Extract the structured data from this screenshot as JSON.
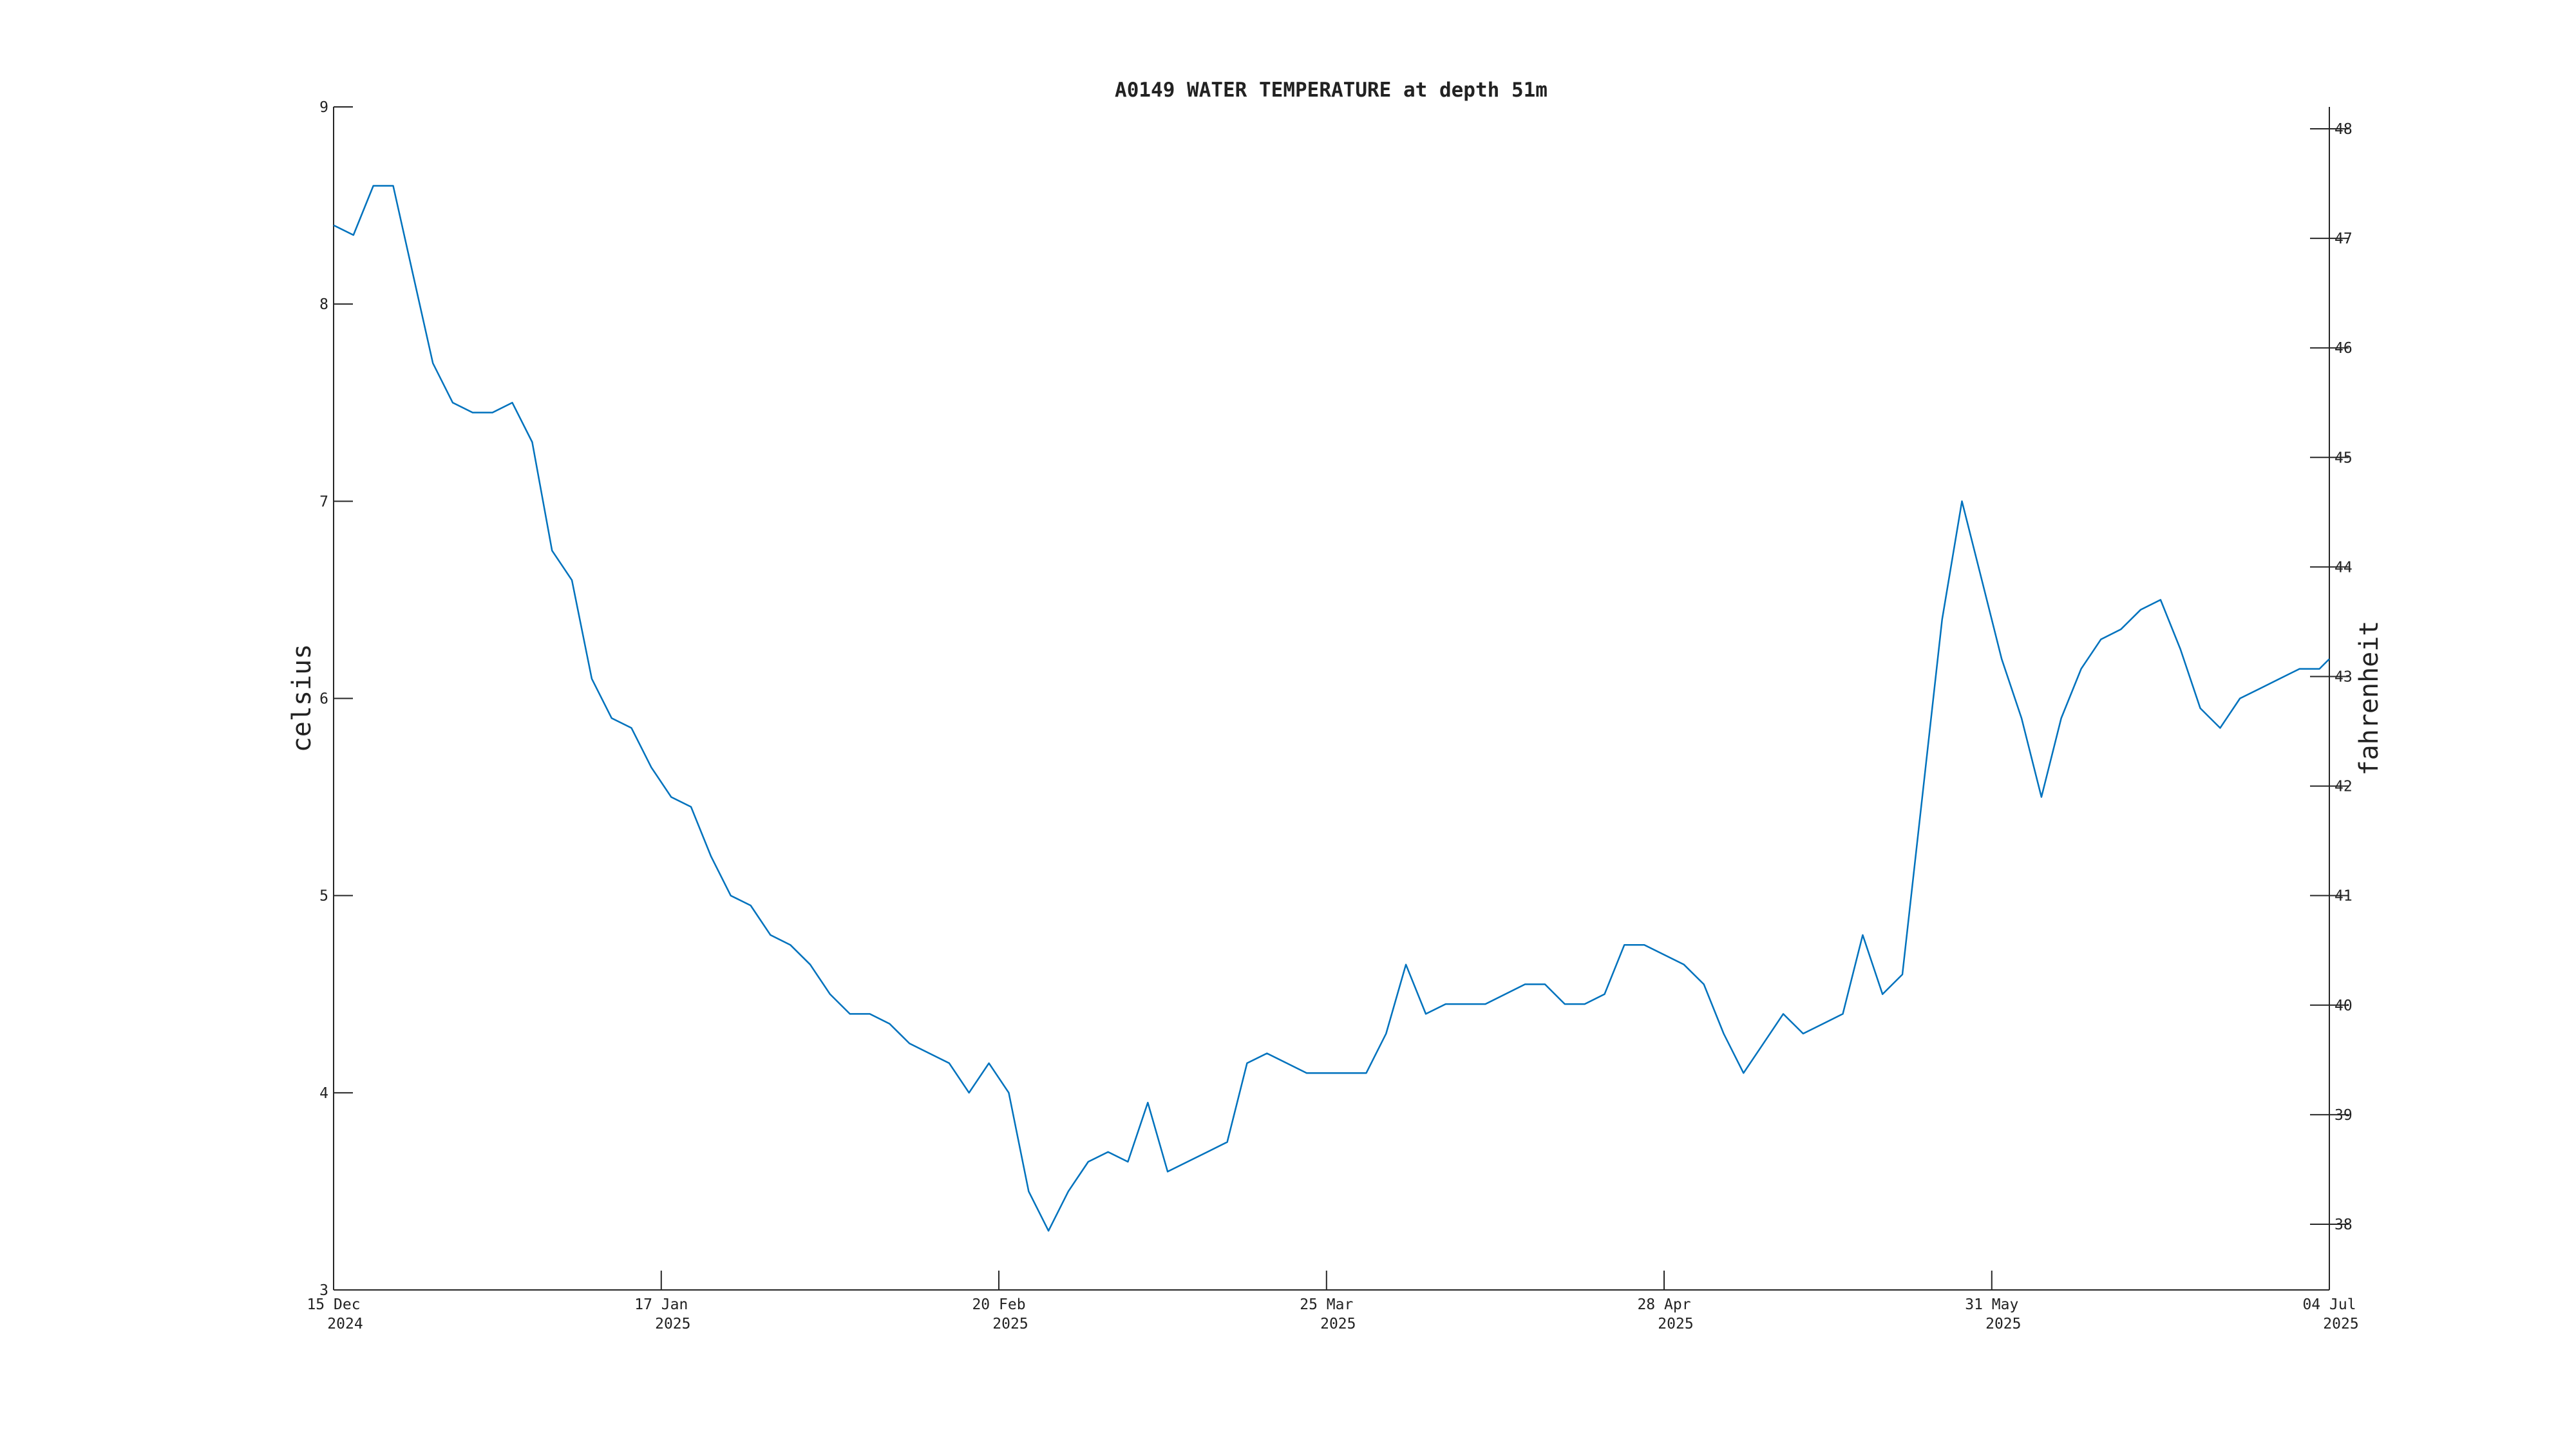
{
  "chart_data": {
    "type": "line",
    "title": "A0149 WATER TEMPERATURE at depth 51m",
    "y_label": "celsius",
    "y2_label": "fahrenheit",
    "color": "#0072bd",
    "x": [
      "2024-12-15",
      "2024-12-17",
      "2024-12-19",
      "2024-12-21",
      "2024-12-23",
      "2024-12-25",
      "2024-12-27",
      "2024-12-29",
      "2024-12-31",
      "2025-01-02",
      "2025-01-04",
      "2025-01-06",
      "2025-01-08",
      "2025-01-10",
      "2025-01-12",
      "2025-01-14",
      "2025-01-16",
      "2025-01-18",
      "2025-01-20",
      "2025-01-22",
      "2025-01-24",
      "2025-01-26",
      "2025-01-28",
      "2025-01-30",
      "2025-02-01",
      "2025-02-03",
      "2025-02-05",
      "2025-02-07",
      "2025-02-09",
      "2025-02-11",
      "2025-02-13",
      "2025-02-15",
      "2025-02-17",
      "2025-02-19",
      "2025-02-21",
      "2025-02-23",
      "2025-02-25",
      "2025-02-27",
      "2025-03-01",
      "2025-03-03",
      "2025-03-05",
      "2025-03-07",
      "2025-03-09",
      "2025-03-11",
      "2025-03-13",
      "2025-03-15",
      "2025-03-17",
      "2025-03-19",
      "2025-03-21",
      "2025-03-23",
      "2025-03-25",
      "2025-03-27",
      "2025-03-29",
      "2025-03-31",
      "2025-04-02",
      "2025-04-04",
      "2025-04-06",
      "2025-04-08",
      "2025-04-10",
      "2025-04-12",
      "2025-04-14",
      "2025-04-16",
      "2025-04-18",
      "2025-04-20",
      "2025-04-22",
      "2025-04-24",
      "2025-04-26",
      "2025-04-28",
      "2025-04-30",
      "2025-05-02",
      "2025-05-04",
      "2025-05-06",
      "2025-05-08",
      "2025-05-10",
      "2025-05-12",
      "2025-05-14",
      "2025-05-16",
      "2025-05-18",
      "2025-05-20",
      "2025-05-22",
      "2025-05-24",
      "2025-05-26",
      "2025-05-28",
      "2025-05-30",
      "2025-06-01",
      "2025-06-03",
      "2025-06-05",
      "2025-06-07",
      "2025-06-09",
      "2025-06-11",
      "2025-06-13",
      "2025-06-15",
      "2025-06-17",
      "2025-06-19",
      "2025-06-21",
      "2025-06-23",
      "2025-06-25",
      "2025-06-27",
      "2025-06-29",
      "2025-07-01",
      "2025-07-03",
      "2025-07-04"
    ],
    "series": [
      {
        "name": "celsius",
        "color": "#0072bd",
        "values": [
          8.4,
          8.35,
          8.6,
          8.6,
          8.15,
          7.7,
          7.5,
          7.45,
          7.45,
          7.5,
          7.3,
          6.75,
          6.6,
          6.1,
          5.9,
          5.85,
          5.65,
          5.5,
          5.45,
          5.2,
          5.0,
          4.95,
          4.8,
          4.75,
          4.65,
          4.5,
          4.4,
          4.4,
          4.35,
          4.25,
          4.2,
          4.15,
          4.0,
          4.15,
          4.0,
          3.5,
          3.3,
          3.5,
          3.65,
          3.7,
          3.65,
          3.95,
          3.6,
          3.65,
          3.7,
          3.75,
          4.15,
          4.2,
          4.15,
          4.1,
          4.1,
          4.1,
          4.1,
          4.3,
          4.65,
          4.4,
          4.45,
          4.45,
          4.45,
          4.5,
          4.55,
          4.55,
          4.45,
          4.45,
          4.5,
          4.75,
          4.75,
          4.7,
          4.65,
          4.55,
          4.3,
          4.1,
          4.25,
          4.4,
          4.3,
          4.35,
          4.4,
          4.8,
          4.5,
          4.6,
          5.5,
          6.4,
          7.0,
          6.6,
          6.2,
          5.9,
          5.5,
          5.9,
          6.15,
          6.3,
          6.35,
          6.45,
          6.5,
          6.25,
          5.95,
          5.85,
          6.0,
          6.05,
          6.1,
          6.15,
          6.15,
          6.2
        ]
      }
    ],
    "xlim": [
      "2024-12-15",
      "2025-07-04"
    ],
    "xticks": [
      {
        "value": "2024-12-15",
        "label": "15 Dec\n2024"
      },
      {
        "value": "2025-01-17",
        "label": "17 Jan\n2025"
      },
      {
        "value": "2025-02-20",
        "label": "20 Feb\n2025"
      },
      {
        "value": "2025-03-25",
        "label": "25 Mar\n2025"
      },
      {
        "value": "2025-04-28",
        "label": "28 Apr\n2025"
      },
      {
        "value": "2025-05-31",
        "label": "31 May\n2025"
      },
      {
        "value": "2025-07-04",
        "label": "04 Jul\n2025"
      }
    ],
    "ylim": [
      3,
      9
    ],
    "yticks": [
      3,
      4,
      5,
      6,
      7,
      8,
      9
    ],
    "y2lim": [
      37.4,
      48.2
    ],
    "y2ticks": [
      38,
      39,
      40,
      41,
      42,
      43,
      44,
      45,
      46,
      47,
      48
    ]
  }
}
